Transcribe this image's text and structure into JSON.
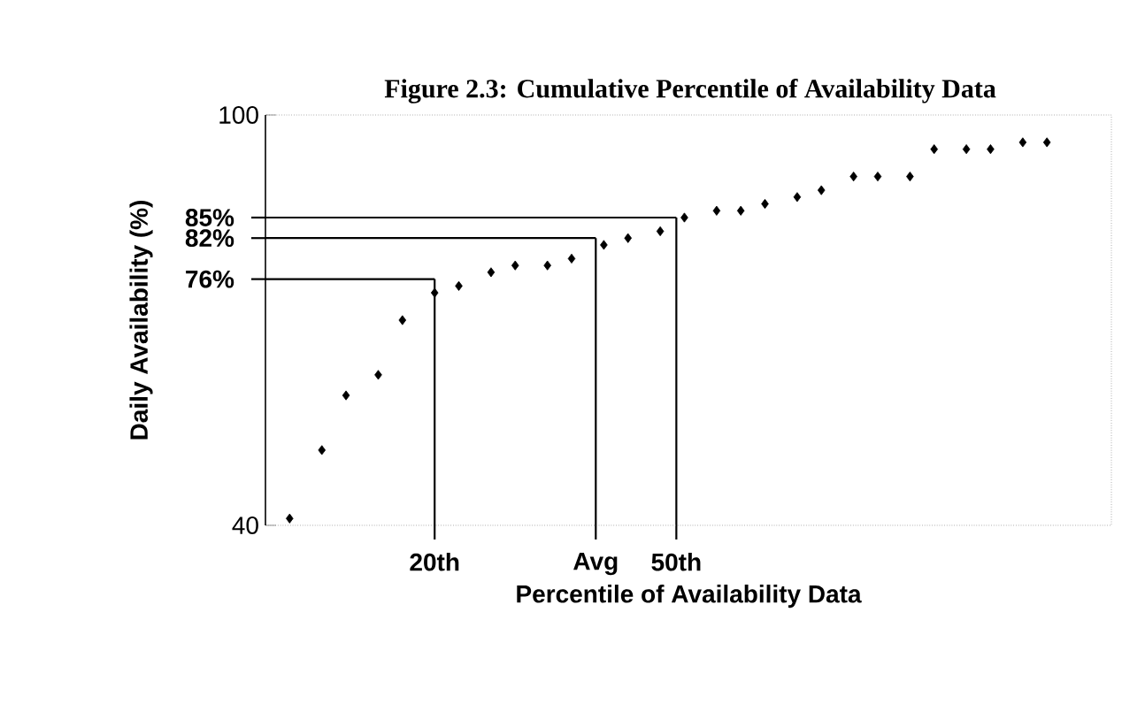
{
  "chart_data": {
    "type": "scatter",
    "title": "Figure 2.3: Cumulative Percentile of Availability Data",
    "xlabel": "Percentile of Availability Data",
    "ylabel": "Daily Availability (%)",
    "x": [
      2,
      6,
      9,
      13,
      16,
      20,
      23,
      27,
      30,
      34,
      37,
      41,
      44,
      48,
      51,
      55,
      58,
      61,
      65,
      68,
      72,
      75,
      79,
      82,
      86,
      89,
      93,
      96
    ],
    "series": [
      {
        "color": "#000000",
        "values": [
          41,
          51,
          59,
          62,
          70,
          74,
          75,
          77,
          78,
          78,
          79,
          81,
          82,
          83,
          85,
          86,
          86,
          87,
          88,
          89,
          91,
          91,
          91,
          95,
          95,
          95,
          96,
          96
        ]
      }
    ],
    "xlim": [
      -1,
      104
    ],
    "ylim": [
      40,
      100
    ],
    "yticks": [
      40,
      100
    ],
    "tick_labels": "y",
    "marker": "diamond",
    "ref_lines": [
      {
        "axis": "y",
        "value": 85,
        "label": "85%"
      },
      {
        "axis": "y",
        "value": 82,
        "label": "82%"
      },
      {
        "axis": "y",
        "value": 76,
        "label": "76%"
      },
      {
        "axis": "x",
        "value": 20,
        "label": "20th"
      },
      {
        "axis": "x",
        "value": 40,
        "label": "Avg"
      },
      {
        "axis": "x",
        "value": 50,
        "label": "50th"
      }
    ]
  }
}
